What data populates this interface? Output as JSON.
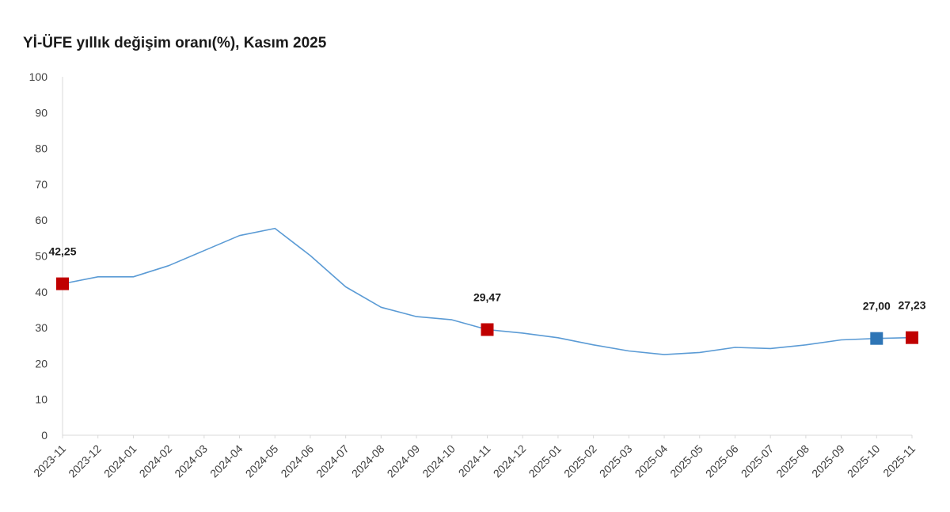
{
  "chart_data": {
    "type": "line",
    "title": "Yİ-ÜFE yıllık değişim oranı(%), Kasım 2025",
    "xlabel": "",
    "ylabel": "",
    "ylim": [
      0,
      100
    ],
    "yticks": [
      0,
      10,
      20,
      30,
      40,
      50,
      60,
      70,
      80,
      90,
      100
    ],
    "grid": false,
    "categories": [
      "2023-11",
      "2023-12",
      "2024-01",
      "2024-02",
      "2024-03",
      "2024-04",
      "2024-05",
      "2024-06",
      "2024-07",
      "2024-08",
      "2024-09",
      "2024-10",
      "2024-11",
      "2024-12",
      "2025-01",
      "2025-02",
      "2025-03",
      "2025-04",
      "2025-05",
      "2025-06",
      "2025-07",
      "2025-08",
      "2025-09",
      "2025-10",
      "2025-11"
    ],
    "series": [
      {
        "values": [
          42.25,
          44.2,
          44.2,
          47.3,
          51.5,
          55.7,
          57.7,
          50.1,
          41.4,
          35.7,
          33.1,
          32.2,
          29.47,
          28.5,
          27.2,
          25.2,
          23.5,
          22.5,
          23.1,
          24.5,
          24.2,
          25.2,
          26.6,
          27.0,
          27.23
        ],
        "color": "#5b9bd5"
      }
    ],
    "markers": [
      {
        "index": 0,
        "label": "42,25",
        "color": "#c00000"
      },
      {
        "index": 12,
        "label": "29,47",
        "color": "#c00000"
      },
      {
        "index": 23,
        "label": "27,00",
        "color": "#2e75b6"
      },
      {
        "index": 24,
        "label": "27,23",
        "color": "#c00000"
      }
    ]
  }
}
